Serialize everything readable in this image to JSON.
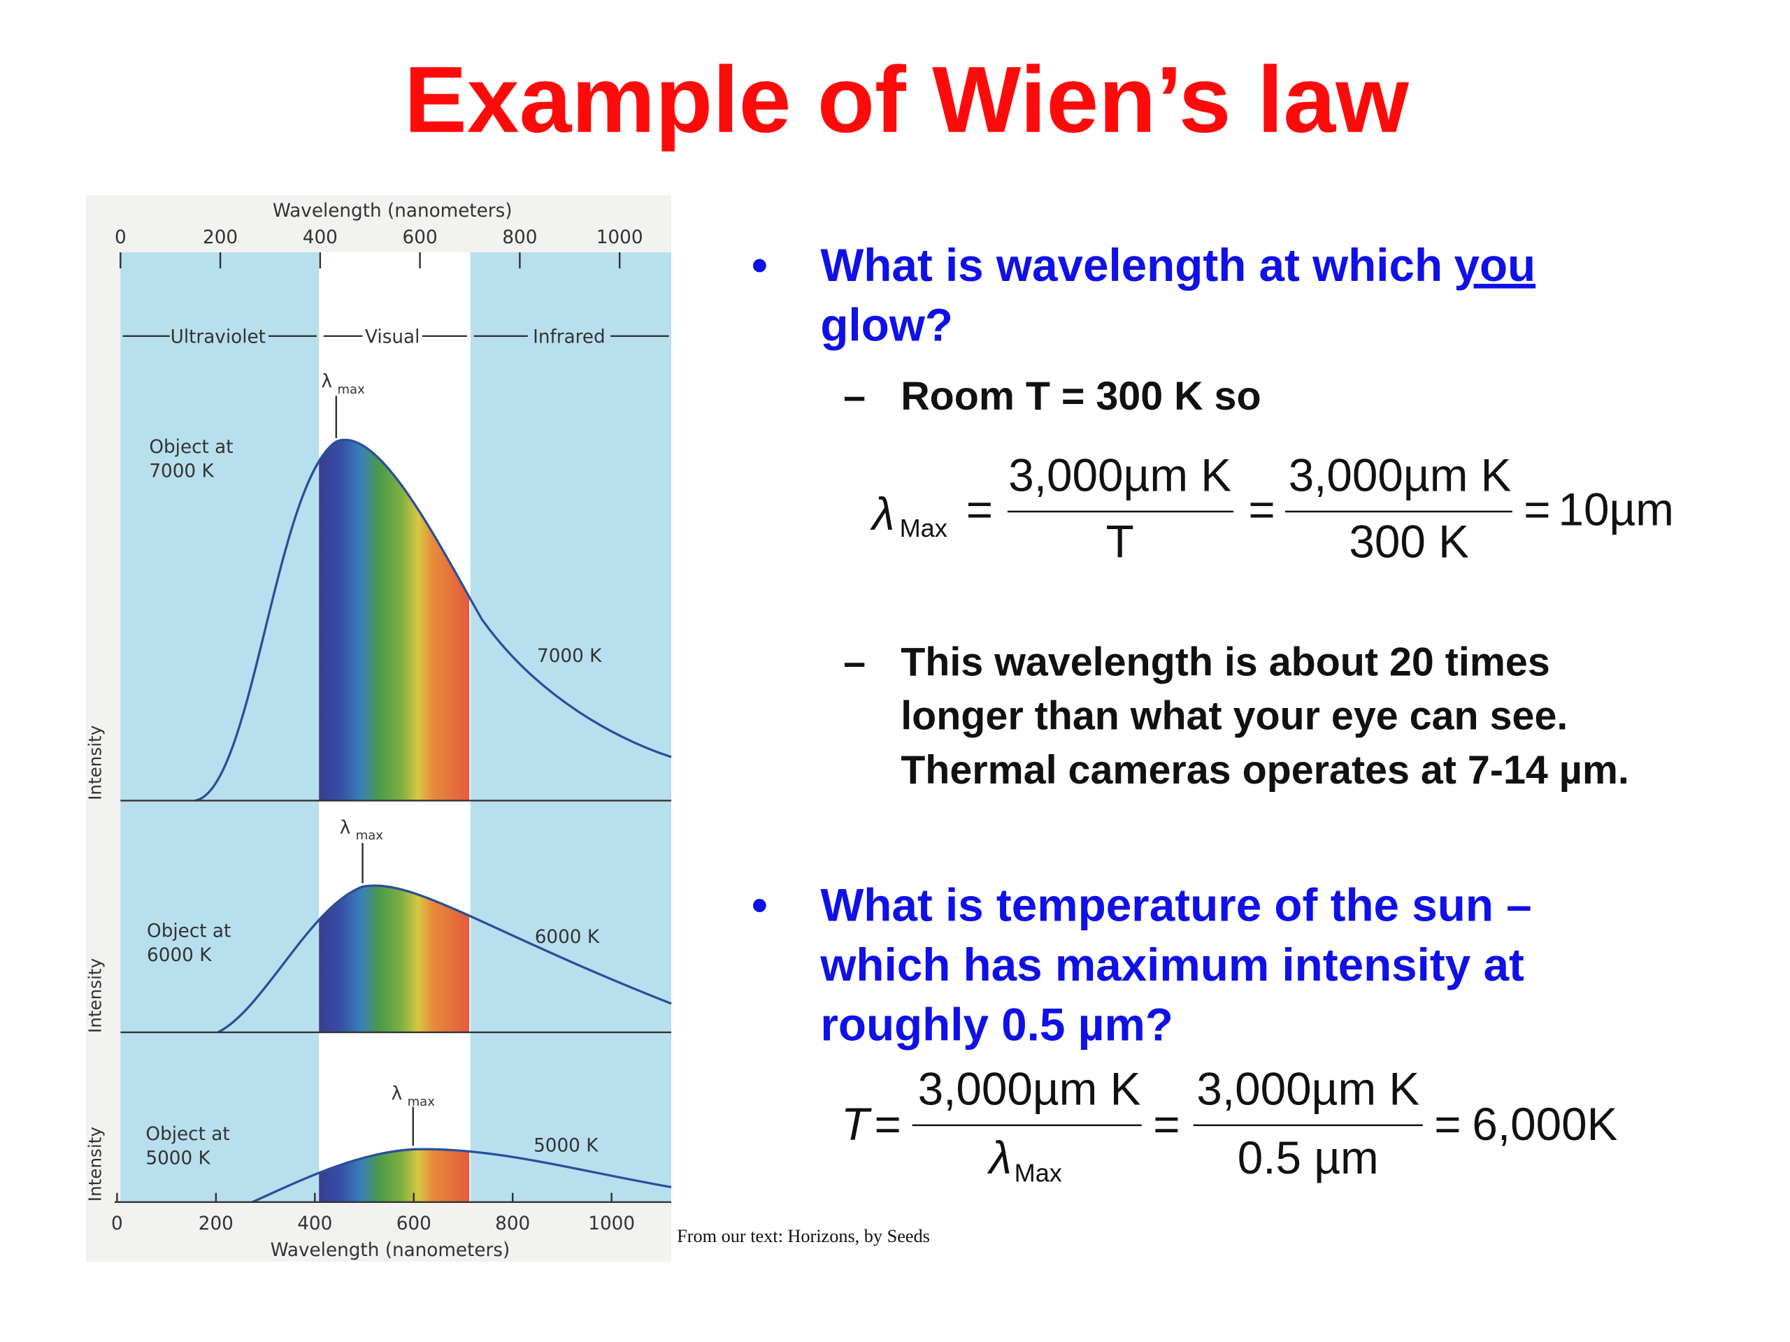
{
  "title": "Example of Wien’s law",
  "figure": {
    "top_axis": {
      "label": "Wavelength (nanometers)",
      "ticks": [
        0,
        200,
        400,
        600,
        800,
        1000
      ]
    },
    "bottom_axis": {
      "label": "Wavelength (nanometers)",
      "ticks": [
        0,
        200,
        400,
        600,
        800,
        1000
      ]
    },
    "regions": [
      "Ultraviolet",
      "Visual",
      "Infrared"
    ],
    "panels": [
      {
        "object_label": [
          "Object at",
          "7000 K"
        ],
        "curve_label": "7000 K",
        "peak_label": "λ",
        "peak_sub": "max",
        "y_label": "Intensity"
      },
      {
        "object_label": [
          "Object at",
          "6000 K"
        ],
        "curve_label": "6000 K",
        "peak_label": "λ",
        "peak_sub": "max",
        "y_label": "Intensity"
      },
      {
        "object_label": [
          "Object at",
          "5000 K"
        ],
        "curve_label": "5000 K",
        "peak_label": "λ",
        "peak_sub": "max",
        "y_label": "Intensity"
      }
    ]
  },
  "caption": "From our text:  Horizons, by Seeds",
  "bullets": [
    {
      "marker": "•",
      "text_before": "What is wavelength at which",
      "underlined": "you",
      "text_after": "glow?",
      "subs": [
        {
          "marker": "–",
          "lines": [
            "Room T = 300 K so"
          ]
        },
        {
          "marker": "–",
          "lines": [
            "This wavelength is about 20 times",
            "longer than what your eye can see.",
            "Thermal cameras operates at 7-14 µm."
          ]
        }
      ],
      "equation": {
        "lhs": "λ",
        "lhs_sub": "Max",
        "eq1": "=",
        "num1": "3,000µm K",
        "den1": "T",
        "eq2": "=",
        "num2": "3,000µm K",
        "den2": "300 K",
        "eq3": "=",
        "result": "10µm"
      }
    },
    {
      "marker": "•",
      "lines": [
        "What is temperature of the sun –",
        "which has maximum intensity at",
        "roughly 0.5 µm?"
      ],
      "equation": {
        "lhs": "T",
        "eq1": "=",
        "num1": "3,000µm K",
        "den1": "λ",
        "den1_sub": "Max",
        "eq2": "=",
        "num2": "3,000µm K",
        "den2": "0.5 µm",
        "eq3": "=",
        "result": "6,000K"
      }
    }
  ]
}
